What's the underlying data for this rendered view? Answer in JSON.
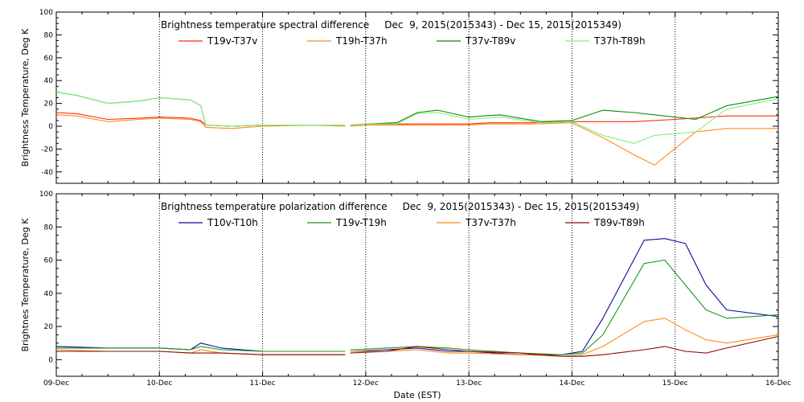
{
  "chart_data": [
    {
      "type": "line",
      "title": "Brightness temperature spectral difference     Dec  9, 2015(2015343) - Dec 15, 2015(2015349)",
      "ylabel": "Brightness Temperature, Deg K",
      "xlabel": "",
      "ylim": [
        -50,
        100
      ],
      "yticks": [
        -40,
        -20,
        0,
        20,
        40,
        60,
        80,
        100
      ],
      "xlim": [
        0,
        7
      ],
      "grid": "vertical dotted at day boundaries",
      "legend": "top",
      "series": [
        {
          "name": "T19v-T37v",
          "color": "#ff2a00",
          "x": [
            0,
            0.2,
            0.5,
            0.8,
            1.0,
            1.3,
            1.4,
            1.45,
            1.7,
            2.0,
            2.5,
            2.8,
            2.85,
            3.0,
            3.3,
            3.6,
            4.0,
            4.2,
            4.6,
            5.0,
            5.3,
            5.6,
            6.0,
            6.5,
            7.0
          ],
          "y": [
            12,
            11,
            6,
            7,
            8,
            7,
            5,
            1,
            0,
            1,
            1,
            1,
            1,
            2,
            2,
            2,
            2,
            3,
            3,
            4,
            4,
            4,
            6,
            9,
            9
          ]
        },
        {
          "name": "T19h-T37h",
          "color": "#ff8c1a",
          "x": [
            0,
            0.2,
            0.5,
            0.8,
            1.0,
            1.3,
            1.4,
            1.45,
            1.7,
            2.0,
            2.5,
            2.8,
            2.85,
            3.0,
            3.3,
            3.6,
            4.0,
            4.2,
            4.6,
            5.0,
            5.3,
            5.6,
            5.8,
            6.2,
            6.5,
            7.0
          ],
          "y": [
            10,
            9,
            4,
            6,
            7,
            6,
            4,
            -1,
            -2,
            0,
            1,
            0,
            0,
            1,
            1,
            1,
            1,
            2,
            2,
            3,
            -10,
            -25,
            -34,
            -5,
            -2,
            -2
          ]
        },
        {
          "name": "T37v-T89v",
          "color": "#0a8a0a",
          "x": [
            0,
            0.2,
            0.5,
            0.8,
            1.0,
            1.3,
            1.4,
            1.45,
            1.7,
            2.0,
            2.5,
            2.8,
            2.85,
            3.0,
            3.3,
            3.5,
            3.7,
            4.0,
            4.3,
            4.7,
            5.0,
            5.3,
            5.6,
            5.8,
            6.2,
            6.5,
            7.0
          ],
          "y": [
            30,
            27,
            20,
            22,
            25,
            23,
            18,
            1,
            0,
            1,
            1,
            1,
            1,
            2,
            3,
            12,
            14,
            8,
            10,
            4,
            5,
            14,
            12,
            10,
            6,
            18,
            26
          ]
        },
        {
          "name": "T37h-T89h",
          "color": "#80f080",
          "x": [
            0,
            0.2,
            0.5,
            0.8,
            1.0,
            1.3,
            1.4,
            1.45,
            1.7,
            2.0,
            2.5,
            2.8,
            2.85,
            3.0,
            3.3,
            3.5,
            3.7,
            4.0,
            4.3,
            4.7,
            5.0,
            5.3,
            5.6,
            5.8,
            6.2,
            6.5,
            7.0
          ],
          "y": [
            30,
            27,
            20,
            22,
            25,
            23,
            18,
            1,
            0,
            1,
            1,
            1,
            1,
            2,
            2,
            11,
            12,
            6,
            8,
            3,
            4,
            -8,
            -15,
            -8,
            -5,
            15,
            24
          ]
        }
      ]
    },
    {
      "type": "line",
      "title": "Brightness temperature polarization difference     Dec  9, 2015(2015343) - Dec 15, 2015(2015349)",
      "ylabel": "Brightnes Temperature, Deg K",
      "xlabel": "Date (EST)",
      "ylim": [
        -10,
        100
      ],
      "yticks": [
        0,
        20,
        40,
        60,
        80,
        100
      ],
      "xlim": [
        0,
        7
      ],
      "xtick_labels": [
        "09-Dec",
        "10-Dec",
        "11-Dec",
        "12-Dec",
        "13-Dec",
        "14-Dec",
        "15-Dec",
        "16-Dec"
      ],
      "grid": "vertical dotted at day boundaries",
      "legend": "top",
      "series": [
        {
          "name": "T10v-T10h",
          "color": "#0a0aa0",
          "x": [
            0,
            0.5,
            1.0,
            1.3,
            1.4,
            1.6,
            2.0,
            2.4,
            2.8,
            2.85,
            3.2,
            3.5,
            3.8,
            4.0,
            4.5,
            4.9,
            5.1,
            5.3,
            5.7,
            5.9,
            6.1,
            6.3,
            6.5,
            7.0
          ],
          "y": [
            8,
            7,
            7,
            6,
            10,
            7,
            5,
            5,
            5,
            5,
            6,
            7,
            5,
            5,
            3,
            3,
            5,
            25,
            72,
            73,
            70,
            45,
            30,
            26
          ]
        },
        {
          "name": "T19v-T19h",
          "color": "#1a9a1a",
          "x": [
            0,
            0.5,
            1.0,
            1.3,
            1.4,
            1.6,
            2.0,
            2.4,
            2.8,
            2.85,
            3.2,
            3.5,
            3.8,
            4.0,
            4.5,
            4.9,
            5.1,
            5.3,
            5.7,
            5.9,
            6.1,
            6.3,
            6.5,
            7.0
          ],
          "y": [
            7,
            7,
            7,
            6,
            8,
            6,
            5,
            5,
            5,
            6,
            7,
            8,
            7,
            6,
            4,
            3,
            4,
            15,
            58,
            60,
            45,
            30,
            25,
            27
          ]
        },
        {
          "name": "T37v-T37h",
          "color": "#ff8c1a",
          "x": [
            0,
            0.5,
            1.0,
            1.3,
            1.4,
            1.6,
            2.0,
            2.4,
            2.8,
            2.85,
            3.2,
            3.5,
            3.8,
            4.0,
            4.5,
            4.9,
            5.1,
            5.3,
            5.7,
            5.9,
            6.1,
            6.3,
            6.5,
            7.0
          ],
          "y": [
            6,
            5,
            5,
            4,
            6,
            4,
            3,
            3,
            3,
            5,
            5,
            6,
            4,
            4,
            3,
            2,
            3,
            8,
            23,
            25,
            18,
            12,
            10,
            15
          ]
        },
        {
          "name": "T89v-T89h",
          "color": "#8b0a0a",
          "x": [
            0,
            0.5,
            1.0,
            1.3,
            1.4,
            1.6,
            2.0,
            2.4,
            2.8,
            2.85,
            3.2,
            3.5,
            3.8,
            4.0,
            4.5,
            4.9,
            5.1,
            5.3,
            5.7,
            5.9,
            6.1,
            6.3,
            6.5,
            7.0
          ],
          "y": [
            5,
            5,
            5,
            4,
            4,
            4,
            3,
            3,
            3,
            4,
            5,
            8,
            6,
            5,
            4,
            2,
            2,
            3,
            6,
            8,
            5,
            4,
            7,
            14
          ]
        }
      ]
    }
  ]
}
